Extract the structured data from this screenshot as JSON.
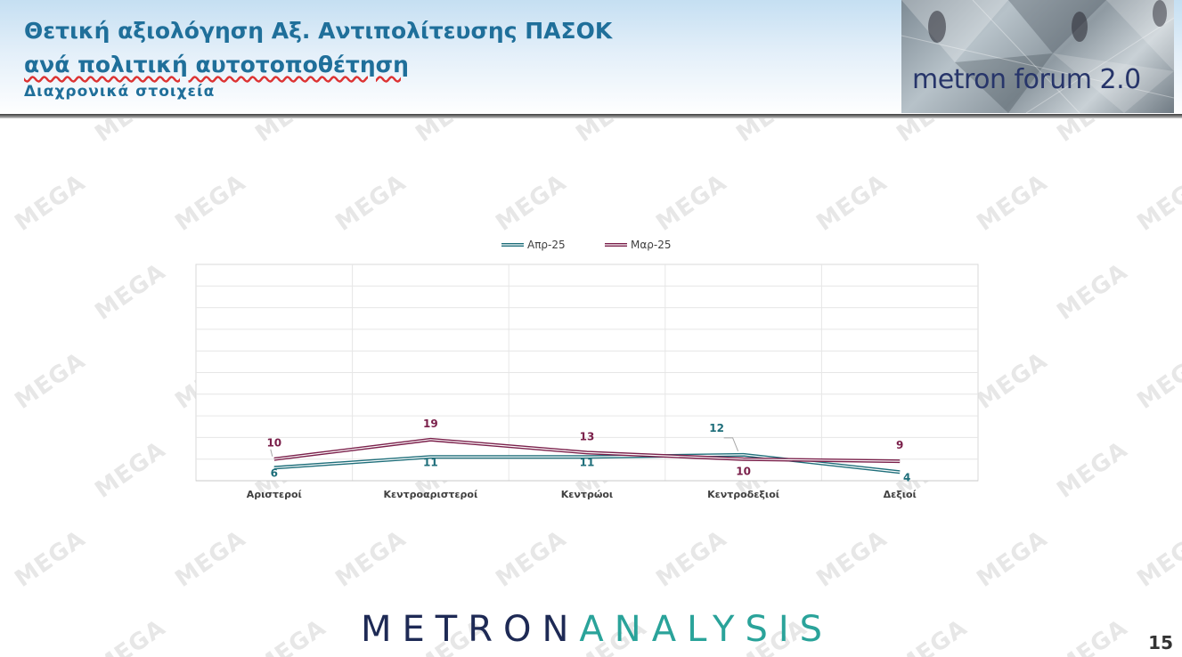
{
  "header": {
    "title_line1": "Θετική αξιολόγηση Αξ. Αντιπολίτευσης ΠΑΣΟΚ",
    "title_line2": "ανά πολιτική αυτοτοποθέτηση",
    "subtitle": "Διαχρονικά στοιχεία"
  },
  "logo": {
    "text": "metron forum 2.0"
  },
  "watermark": {
    "text": "MEGA"
  },
  "footer": {
    "brand_part1": "METRON",
    "brand_part2": "ANALYSIS",
    "page_number": "15"
  },
  "chart_data": {
    "type": "line",
    "categories": [
      "Αριστεροί",
      "Κεντροαριστεροί",
      "Κεντρώοι",
      "Κεντροδεξιοί",
      "Δεξιοί"
    ],
    "series": [
      {
        "name": "Απρ-25",
        "values": [
          6,
          11,
          11,
          12,
          4
        ],
        "color": "#1e6e7a"
      },
      {
        "name": "Μαρ-25",
        "values": [
          10,
          19,
          13,
          10,
          9
        ],
        "color": "#7a1f4a"
      }
    ],
    "ylim": [
      0,
      100
    ],
    "grid": true,
    "legend": "top"
  }
}
